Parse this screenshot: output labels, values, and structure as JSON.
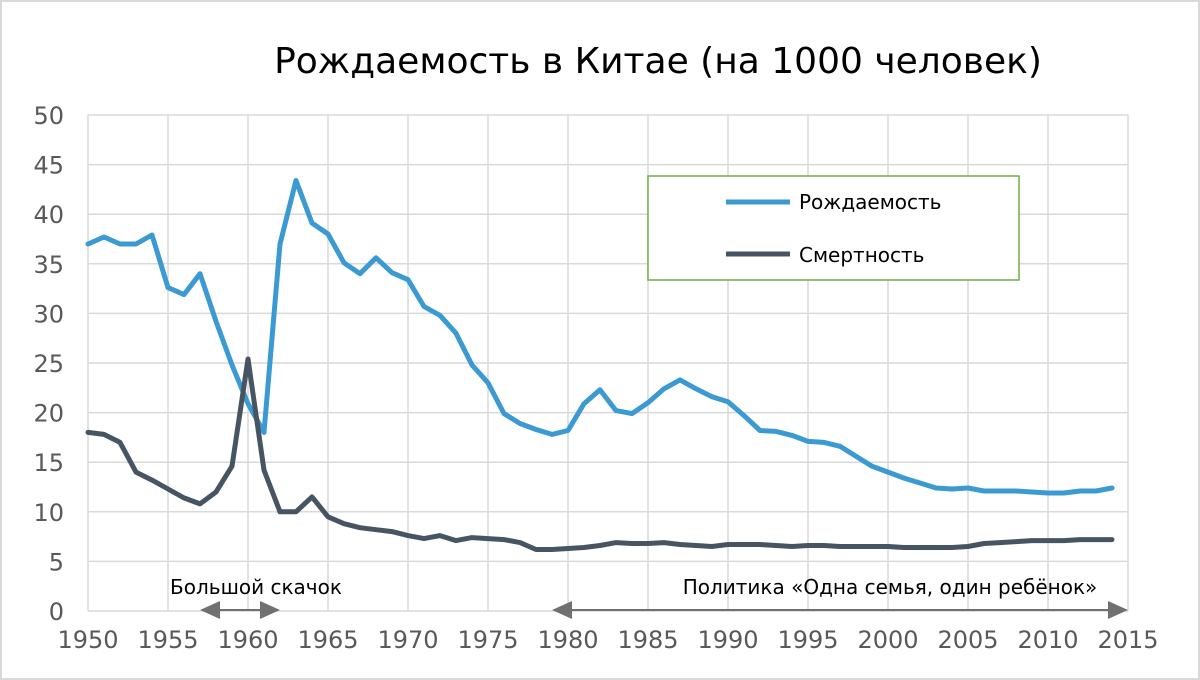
{
  "chart_data": {
    "type": "line",
    "title": "Рождаемость в Китае (на 1000 человек)",
    "xlabel": "",
    "ylabel": "",
    "xlim": [
      1950,
      2015
    ],
    "ylim": [
      0,
      50
    ],
    "grid": true,
    "legend_position": "top-right",
    "x_ticks": [
      1950,
      1955,
      1960,
      1965,
      1970,
      1975,
      1980,
      1985,
      1990,
      1995,
      2000,
      2005,
      2010,
      2015
    ],
    "y_ticks": [
      0,
      5,
      10,
      15,
      20,
      25,
      30,
      35,
      40,
      45,
      50
    ],
    "series": [
      {
        "name": "Рождаемость",
        "color": "#3b9ad2",
        "points": [
          [
            1950,
            37.0
          ],
          [
            1951,
            37.7
          ],
          [
            1952,
            37.0
          ],
          [
            1953,
            37.0
          ],
          [
            1954,
            37.9
          ],
          [
            1955,
            32.6
          ],
          [
            1956,
            31.9
          ],
          [
            1957,
            34.0
          ],
          [
            1958,
            29.2
          ],
          [
            1959,
            24.8
          ],
          [
            1960,
            20.9
          ],
          [
            1961,
            18.0
          ],
          [
            1962,
            37.0
          ],
          [
            1963,
            43.4
          ],
          [
            1964,
            39.1
          ],
          [
            1965,
            38.0
          ],
          [
            1966,
            35.1
          ],
          [
            1967,
            34.0
          ],
          [
            1968,
            35.6
          ],
          [
            1969,
            34.1
          ],
          [
            1970,
            33.4
          ],
          [
            1971,
            30.7
          ],
          [
            1972,
            29.8
          ],
          [
            1973,
            28.0
          ],
          [
            1974,
            24.8
          ],
          [
            1975,
            23.0
          ],
          [
            1976,
            19.9
          ],
          [
            1977,
            18.9
          ],
          [
            1978,
            18.3
          ],
          [
            1979,
            17.8
          ],
          [
            1980,
            18.2
          ],
          [
            1981,
            20.9
          ],
          [
            1982,
            22.3
          ],
          [
            1983,
            20.2
          ],
          [
            1984,
            19.9
          ],
          [
            1985,
            21.0
          ],
          [
            1986,
            22.4
          ],
          [
            1987,
            23.3
          ],
          [
            1988,
            22.4
          ],
          [
            1989,
            21.6
          ],
          [
            1990,
            21.1
          ],
          [
            1991,
            19.7
          ],
          [
            1992,
            18.2
          ],
          [
            1993,
            18.1
          ],
          [
            1994,
            17.7
          ],
          [
            1995,
            17.1
          ],
          [
            1996,
            17.0
          ],
          [
            1997,
            16.6
          ],
          [
            1998,
            15.6
          ],
          [
            1999,
            14.6
          ],
          [
            2000,
            14.0
          ],
          [
            2001,
            13.4
          ],
          [
            2002,
            12.9
          ],
          [
            2003,
            12.4
          ],
          [
            2004,
            12.3
          ],
          [
            2005,
            12.4
          ],
          [
            2006,
            12.1
          ],
          [
            2007,
            12.1
          ],
          [
            2008,
            12.1
          ],
          [
            2009,
            12.0
          ],
          [
            2010,
            11.9
          ],
          [
            2011,
            11.9
          ],
          [
            2012,
            12.1
          ],
          [
            2013,
            12.1
          ],
          [
            2014,
            12.4
          ]
        ]
      },
      {
        "name": "Смертность",
        "color": "#475563",
        "points": [
          [
            1950,
            18.0
          ],
          [
            1951,
            17.8
          ],
          [
            1952,
            17.0
          ],
          [
            1953,
            14.0
          ],
          [
            1954,
            13.2
          ],
          [
            1955,
            12.3
          ],
          [
            1956,
            11.4
          ],
          [
            1957,
            10.8
          ],
          [
            1958,
            12.0
          ],
          [
            1959,
            14.6
          ],
          [
            1960,
            25.4
          ],
          [
            1961,
            14.2
          ],
          [
            1962,
            10.0
          ],
          [
            1963,
            10.0
          ],
          [
            1964,
            11.5
          ],
          [
            1965,
            9.5
          ],
          [
            1966,
            8.8
          ],
          [
            1967,
            8.4
          ],
          [
            1968,
            8.2
          ],
          [
            1969,
            8.0
          ],
          [
            1970,
            7.6
          ],
          [
            1971,
            7.3
          ],
          [
            1972,
            7.6
          ],
          [
            1973,
            7.1
          ],
          [
            1974,
            7.4
          ],
          [
            1975,
            7.3
          ],
          [
            1976,
            7.2
          ],
          [
            1977,
            6.9
          ],
          [
            1978,
            6.2
          ],
          [
            1979,
            6.2
          ],
          [
            1980,
            6.3
          ],
          [
            1981,
            6.4
          ],
          [
            1982,
            6.6
          ],
          [
            1983,
            6.9
          ],
          [
            1984,
            6.8
          ],
          [
            1985,
            6.8
          ],
          [
            1986,
            6.9
          ],
          [
            1987,
            6.7
          ],
          [
            1988,
            6.6
          ],
          [
            1989,
            6.5
          ],
          [
            1990,
            6.7
          ],
          [
            1991,
            6.7
          ],
          [
            1992,
            6.7
          ],
          [
            1993,
            6.6
          ],
          [
            1994,
            6.5
          ],
          [
            1995,
            6.6
          ],
          [
            1996,
            6.6
          ],
          [
            1997,
            6.5
          ],
          [
            1998,
            6.5
          ],
          [
            1999,
            6.5
          ],
          [
            2000,
            6.5
          ],
          [
            2001,
            6.4
          ],
          [
            2002,
            6.4
          ],
          [
            2003,
            6.4
          ],
          [
            2004,
            6.4
          ],
          [
            2005,
            6.5
          ],
          [
            2006,
            6.8
          ],
          [
            2007,
            6.9
          ],
          [
            2008,
            7.0
          ],
          [
            2009,
            7.1
          ],
          [
            2010,
            7.1
          ],
          [
            2011,
            7.1
          ],
          [
            2012,
            7.2
          ],
          [
            2013,
            7.2
          ],
          [
            2014,
            7.2
          ]
        ]
      }
    ],
    "legend_border_color": "#70ad47",
    "annotations": [
      {
        "text": "Большой скачок",
        "arrow_from": 1957,
        "arrow_to": 1962,
        "both_heads": true,
        "arrow_color": "#707070"
      },
      {
        "text": "Политика «Одна семья, один ребёнок»",
        "arrow_from": 1979,
        "arrow_to": 2015,
        "both_heads": true,
        "arrow_color": "#707070"
      }
    ]
  }
}
